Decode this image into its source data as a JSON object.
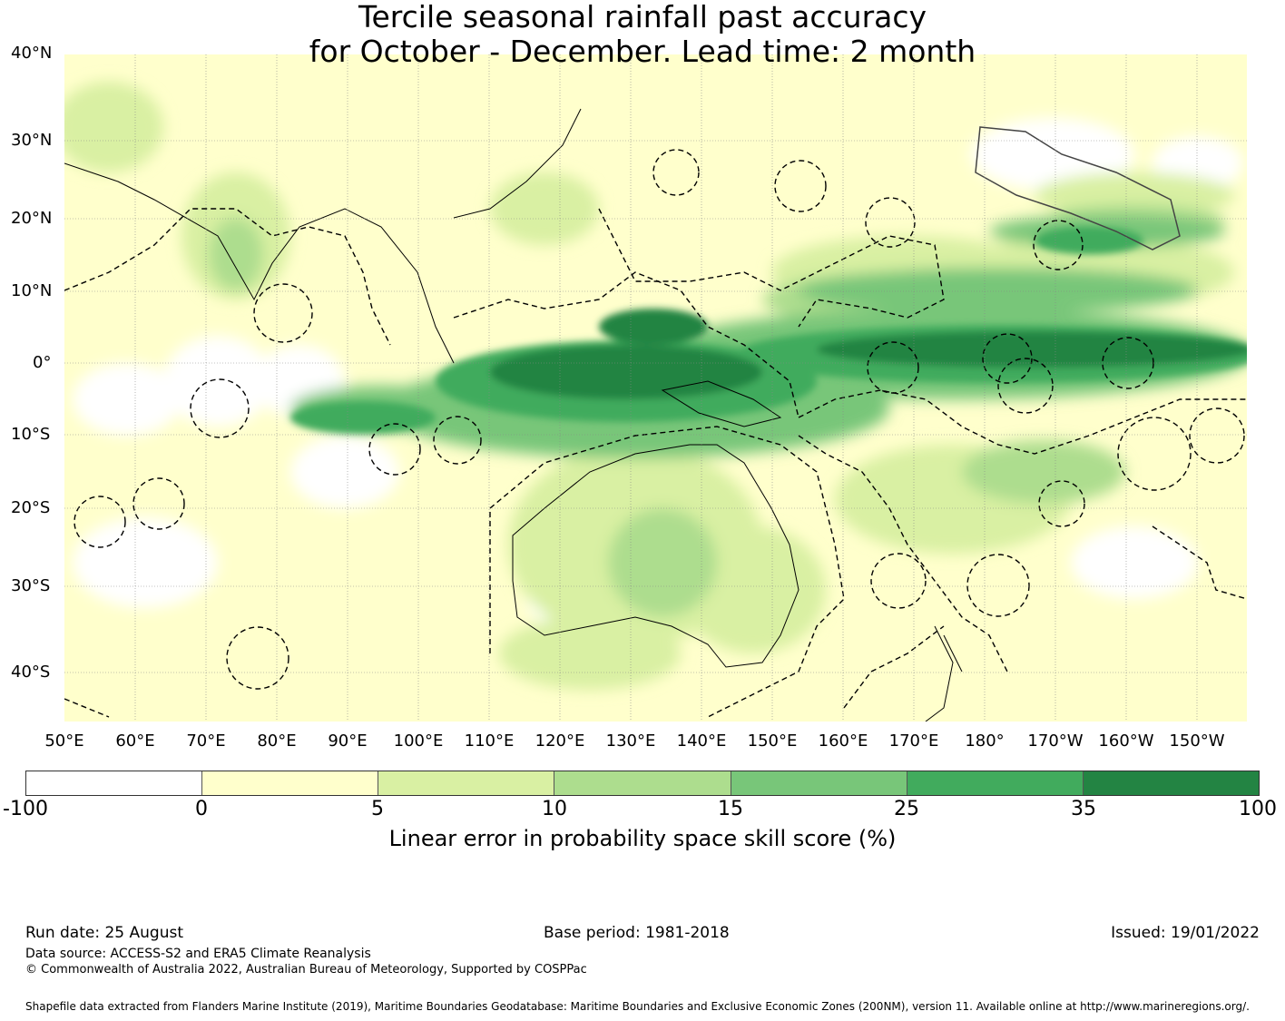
{
  "title_line1": "Tercile seasonal rainfall past accuracy",
  "title_line2": "for October - December. Lead time: 2 month",
  "lat_labels": [
    "40°N",
    "30°N",
    "20°N",
    "10°N",
    "0°",
    "10°S",
    "20°S",
    "30°S",
    "40°S"
  ],
  "lon_labels": [
    "50°E",
    "60°E",
    "70°E",
    "80°E",
    "90°E",
    "100°E",
    "110°E",
    "120°E",
    "130°E",
    "140°E",
    "150°E",
    "160°E",
    "170°E",
    "180°",
    "170°W",
    "160°W",
    "150°W"
  ],
  "colorbar": {
    "ticks": [
      "-100",
      "0",
      "5",
      "10",
      "15",
      "25",
      "35",
      "100"
    ],
    "colors": [
      "#ffffff",
      "#ffffcc",
      "#d9f0a3",
      "#addd8e",
      "#78c679",
      "#41ab5d",
      "#238443"
    ],
    "label": "Linear error in probability space skill score (%)"
  },
  "footer": {
    "run_date": "Run date: 25 August",
    "base_period": "Base period: 1981-2018",
    "issued": "Issued: 19/01/2022",
    "data_source": "Data source: ACCESS-S2 and ERA5 Climate Reanalysis",
    "copyright": "© Commonwealth of Australia 2022, Australian Bureau of Meteorology, Supported by COSPPac",
    "shapefile": "Shapefile data extracted from Flanders Marine Institute (2019), Maritime Boundaries Geodatabase: Maritime Boundaries and Exclusive Economic Zones (200NM), version 11. Available online at http://www.marineregions.org/."
  }
}
